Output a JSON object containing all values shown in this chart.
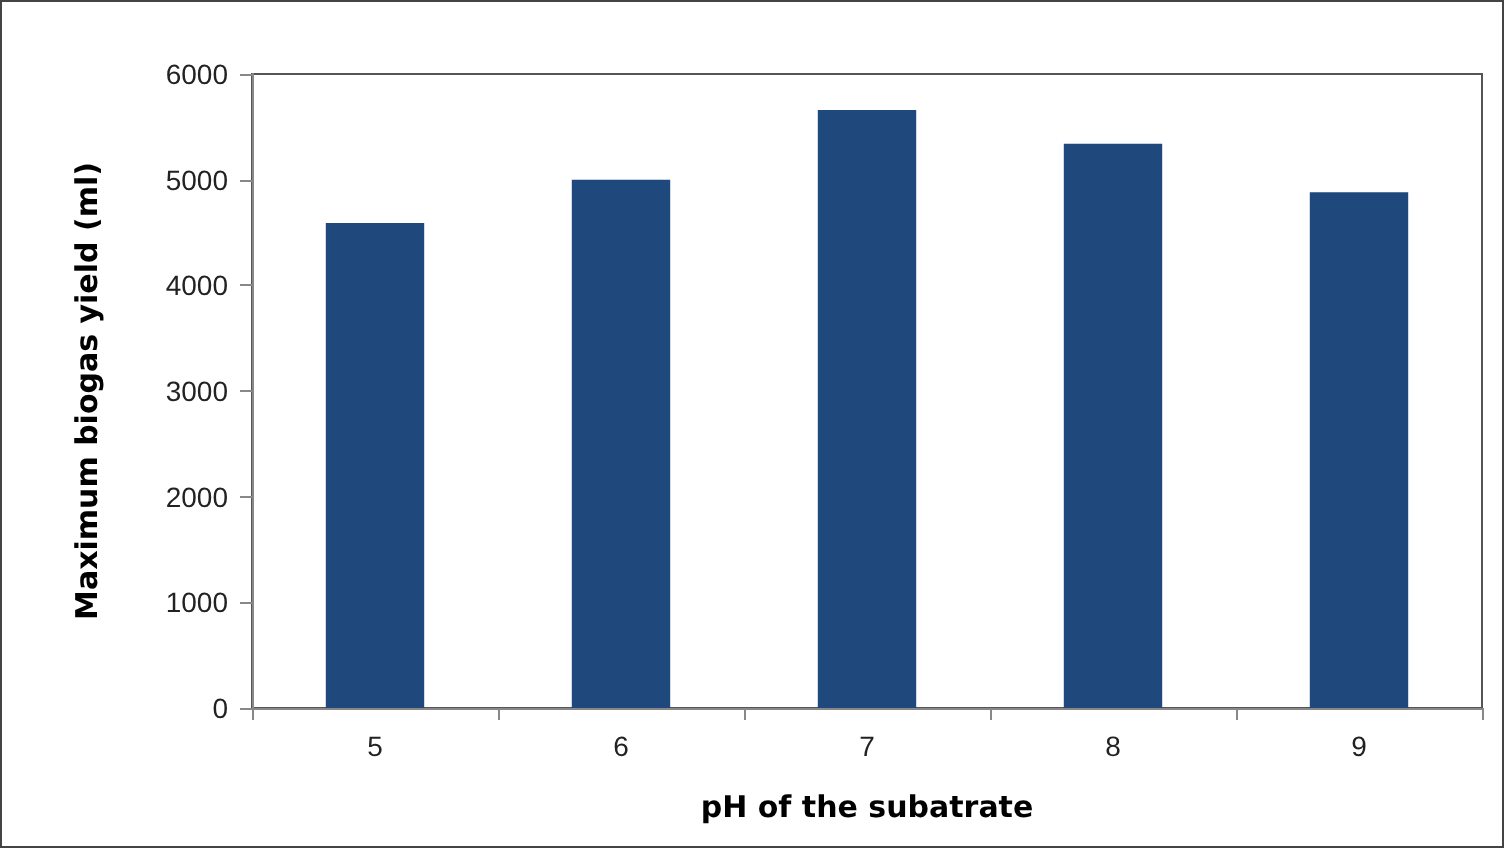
{
  "chart_data": {
    "type": "bar",
    "xlabel": "pH of the subatrate",
    "ylabel": "Maximum biogas yield (ml)",
    "categories": [
      "5",
      "6",
      "7",
      "8",
      "9"
    ],
    "values": [
      4590,
      5000,
      5660,
      5340,
      4880
    ],
    "color": "#1f497d",
    "ylim": [
      0,
      6000
    ],
    "yticks": [
      0,
      1000,
      2000,
      3000,
      4000,
      5000,
      6000
    ],
    "grid": false
  }
}
